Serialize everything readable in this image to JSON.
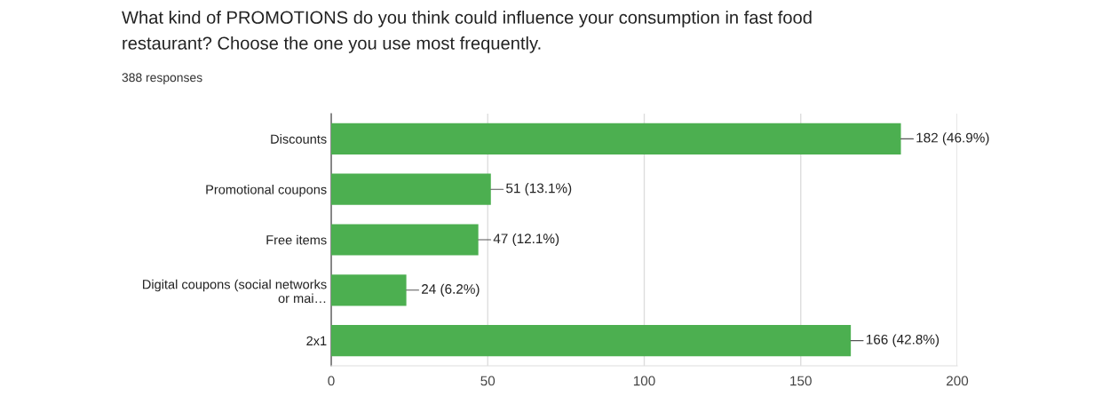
{
  "chart_data": {
    "type": "bar",
    "orientation": "horizontal",
    "title": "What kind of PROMOTIONS do you think could influence your consumption in fast food\nrestaurant? Choose the one you use most frequently.",
    "subtitle": "388 responses",
    "categories": [
      "Discounts",
      "Promotional coupons",
      "Free items",
      "Digital coupons (social networks\nor mai…",
      "2x1"
    ],
    "values": [
      182,
      51,
      47,
      24,
      166
    ],
    "value_labels": [
      "182 (46.9%)",
      "51 (13.1%)",
      "47 (12.1%)",
      "24 (6.2%)",
      "166 (42.8%)"
    ],
    "color": "#4caf50",
    "xlim": [
      0,
      200
    ],
    "xticks": [
      0,
      50,
      100,
      150,
      200
    ],
    "grid": "x"
  }
}
